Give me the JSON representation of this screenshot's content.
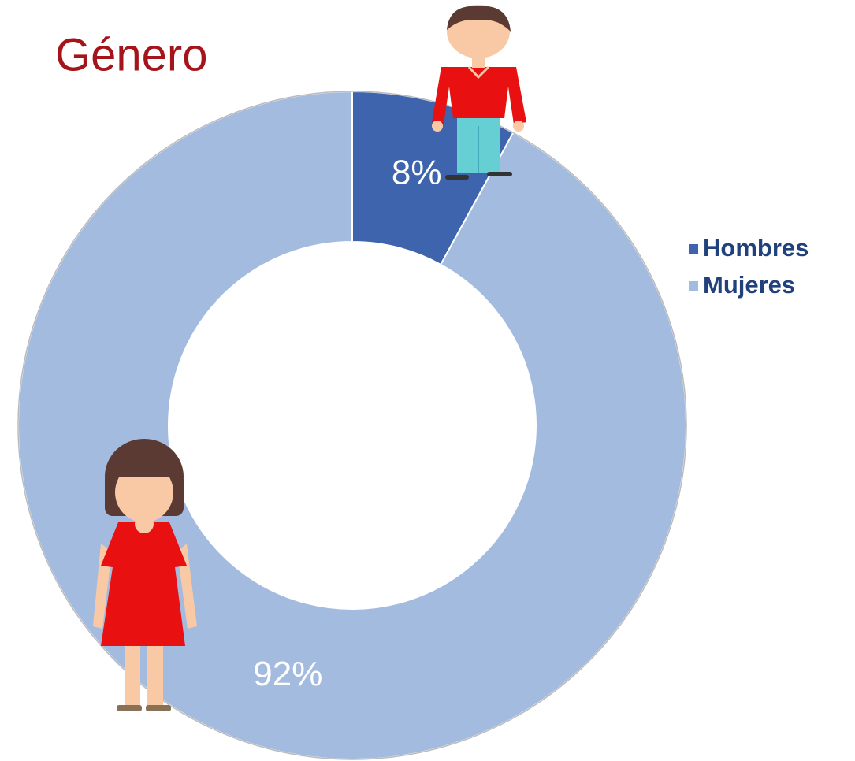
{
  "chart_data": {
    "type": "donut",
    "title": "Género",
    "categories": [
      "Hombres",
      "Mujeres"
    ],
    "values": [
      8,
      92
    ],
    "value_labels": [
      "8%",
      "92%"
    ],
    "colors": [
      "#3d64ad",
      "#a4bbe0"
    ],
    "legend": "right"
  }
}
